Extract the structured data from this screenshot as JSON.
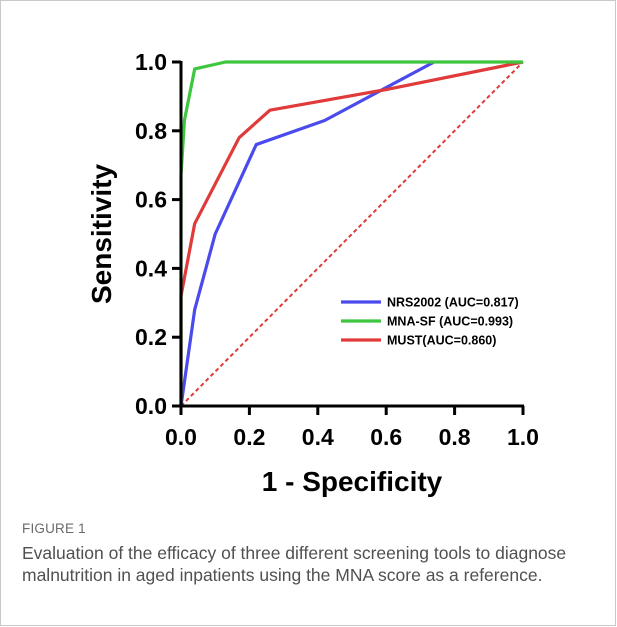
{
  "caption": {
    "label": "FIGURE 1",
    "text": "Evaluation of the efficacy of three different screening tools to diagnose malnutrition in aged inpatients using the MNA score as a reference."
  },
  "chart_data": {
    "type": "line",
    "xlabel": "1 - Specificity",
    "ylabel": "Sensitivity",
    "xlim": [
      0,
      1
    ],
    "ylim": [
      0,
      1
    ],
    "xticks": [
      "0.0",
      "0.2",
      "0.4",
      "0.6",
      "0.8",
      "1.0"
    ],
    "yticks": [
      "0.0",
      "0.2",
      "0.4",
      "0.6",
      "0.8",
      "1.0"
    ],
    "grid": false,
    "legend_position": "lower-right",
    "series": [
      {
        "name": "NRS2002 (AUC=0.817)",
        "color": "#4a4aed",
        "x": [
          0.0,
          0.04,
          0.1,
          0.22,
          0.42,
          0.74
        ],
        "y": [
          0.0,
          0.28,
          0.5,
          0.76,
          0.83,
          1.0
        ]
      },
      {
        "name": "MNA-SF (AUC=0.993)",
        "color": "#3ec63e",
        "x": [
          0.0,
          0.0,
          0.0,
          0.01,
          0.04,
          0.13,
          1.0
        ],
        "y": [
          0.0,
          0.5,
          0.67,
          0.83,
          0.98,
          1.0,
          1.0
        ]
      },
      {
        "name": "MUST(AUC=0.860)",
        "color": "#e03a3a",
        "x": [
          0.0,
          0.0,
          0.04,
          0.17,
          0.26,
          0.6,
          1.0
        ],
        "y": [
          0.0,
          0.32,
          0.53,
          0.78,
          0.86,
          0.92,
          1.0
        ]
      },
      {
        "name": "",
        "color": "#e03a3a",
        "dashed": true,
        "x": [
          0.0,
          1.0
        ],
        "y": [
          0.0,
          1.0
        ]
      }
    ]
  }
}
